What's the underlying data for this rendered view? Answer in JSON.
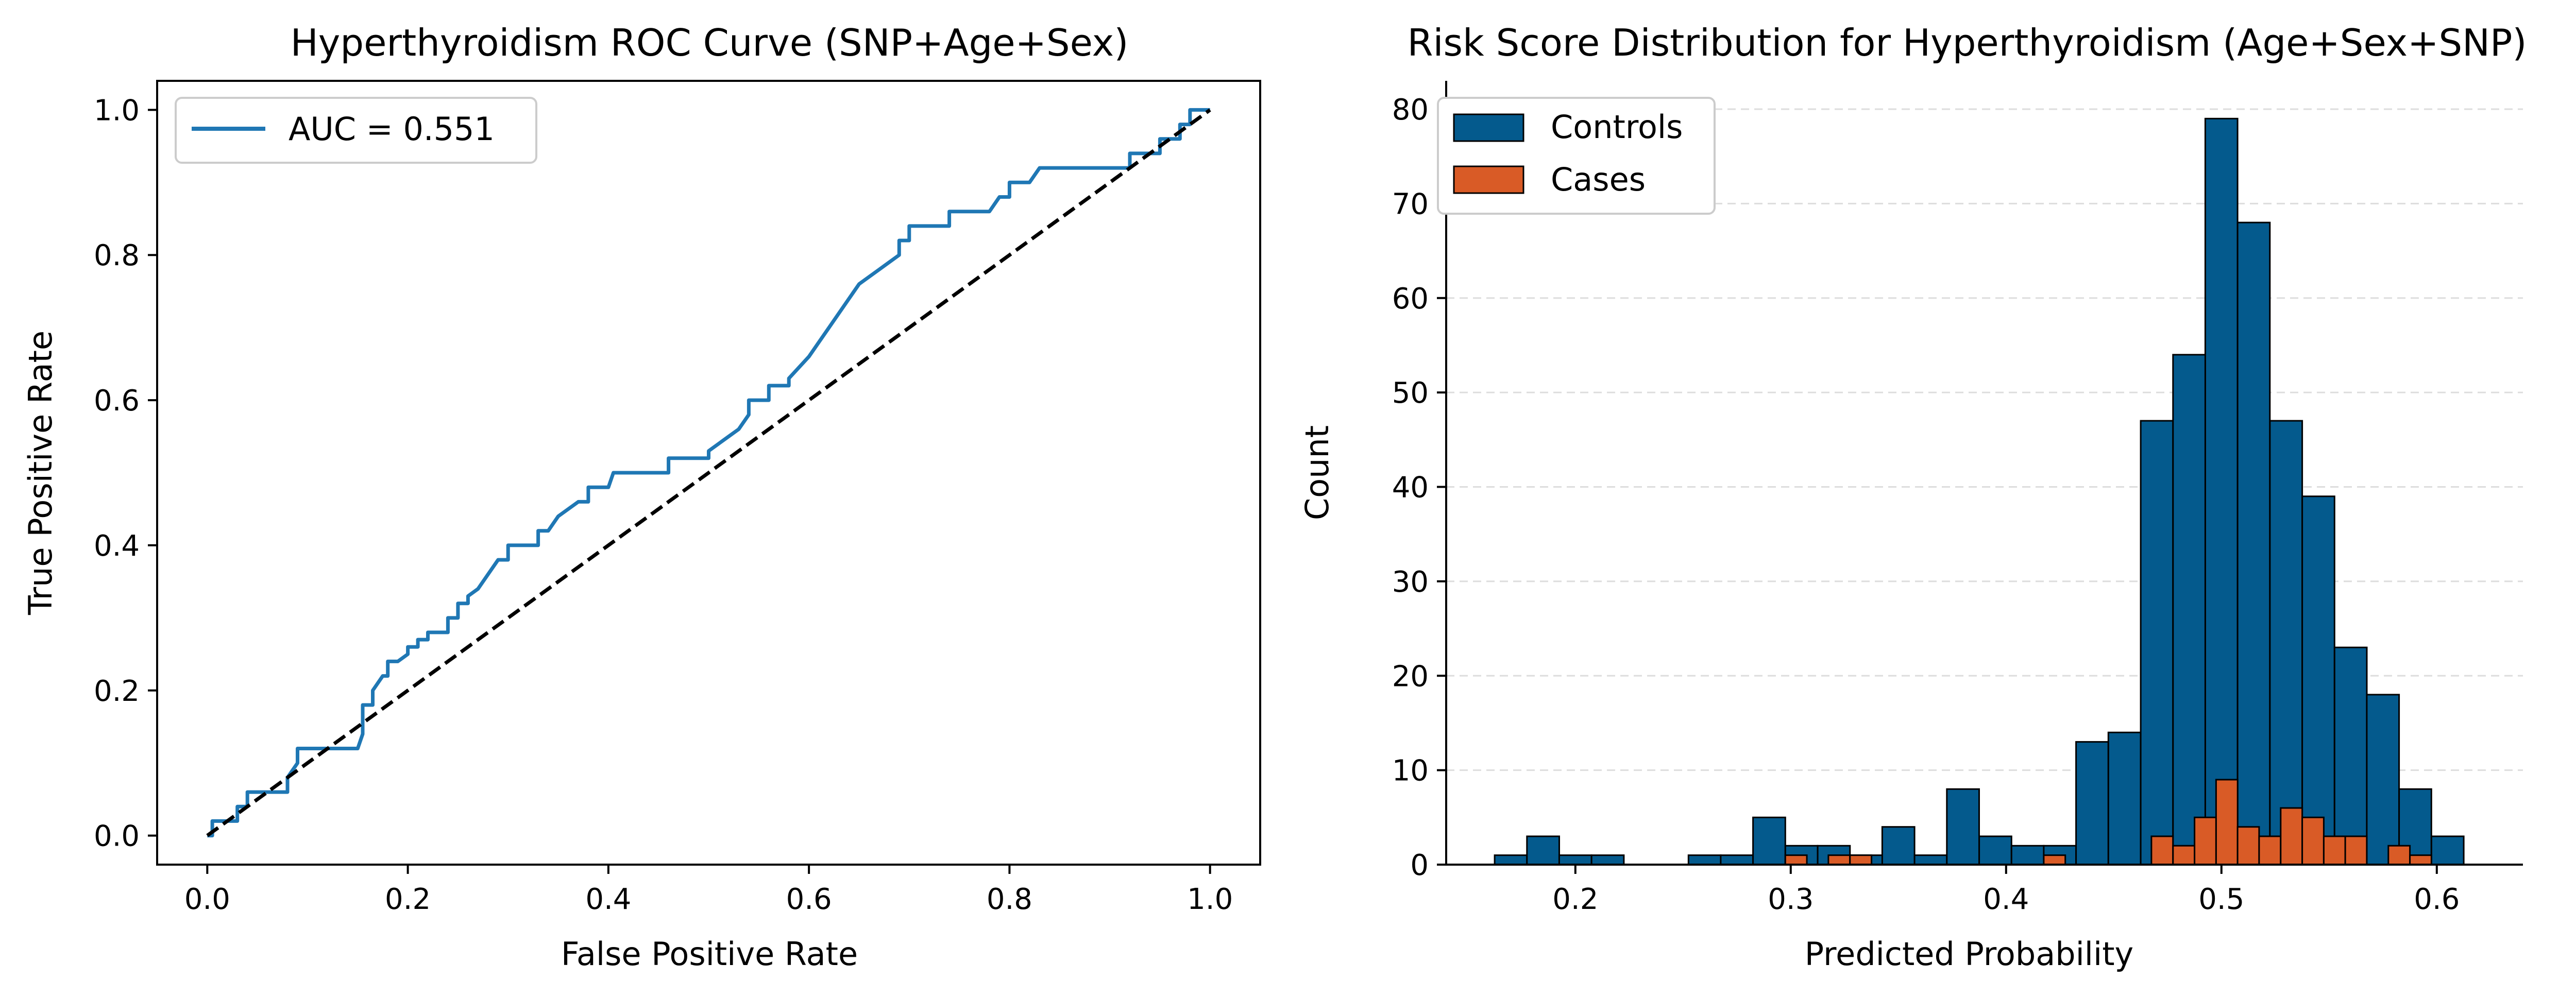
{
  "chart_data": [
    {
      "type": "line",
      "title": "Hyperthyroidism ROC Curve (SNP+Age+Sex)",
      "xlabel": "False Positive Rate",
      "ylabel": "True Positive Rate",
      "xlim": [
        -0.05,
        1.05
      ],
      "ylim": [
        -0.04,
        1.04
      ],
      "xticks": [
        "0.0",
        "0.2",
        "0.4",
        "0.6",
        "0.8",
        "1.0"
      ],
      "yticks": [
        "0.0",
        "0.2",
        "0.4",
        "0.6",
        "0.8",
        "1.0"
      ],
      "grid": false,
      "legend_position": "top-left",
      "series": [
        {
          "name": "AUC = 0.551",
          "color": "#1f77b4",
          "style": "solid",
          "x": [
            0.0,
            0.005,
            0.005,
            0.03,
            0.03,
            0.04,
            0.04,
            0.08,
            0.08,
            0.09,
            0.09,
            0.13,
            0.13,
            0.15,
            0.155,
            0.155,
            0.165,
            0.165,
            0.175,
            0.18,
            0.18,
            0.19,
            0.2,
            0.2,
            0.21,
            0.21,
            0.22,
            0.22,
            0.24,
            0.24,
            0.25,
            0.25,
            0.26,
            0.26,
            0.27,
            0.28,
            0.29,
            0.3,
            0.3,
            0.33,
            0.33,
            0.34,
            0.35,
            0.35,
            0.37,
            0.38,
            0.38,
            0.4,
            0.405,
            0.405,
            0.46,
            0.46,
            0.5,
            0.5,
            0.52,
            0.53,
            0.54,
            0.54,
            0.56,
            0.56,
            0.58,
            0.58,
            0.6,
            0.61,
            0.62,
            0.62,
            0.63,
            0.63,
            0.65,
            0.65,
            0.67,
            0.67,
            0.69,
            0.69,
            0.7,
            0.7,
            0.74,
            0.74,
            0.78,
            0.79,
            0.8,
            0.8,
            0.82,
            0.82,
            0.83,
            0.83,
            0.92,
            0.92,
            0.93,
            0.93,
            0.95,
            0.95,
            0.97,
            0.97,
            0.98,
            0.98,
            1.0
          ],
          "y": [
            0.0,
            0.0,
            0.02,
            0.02,
            0.04,
            0.04,
            0.06,
            0.06,
            0.08,
            0.1,
            0.12,
            0.12,
            0.12,
            0.12,
            0.14,
            0.18,
            0.18,
            0.2,
            0.22,
            0.22,
            0.24,
            0.24,
            0.25,
            0.26,
            0.26,
            0.27,
            0.27,
            0.28,
            0.28,
            0.3,
            0.3,
            0.32,
            0.32,
            0.33,
            0.34,
            0.36,
            0.38,
            0.38,
            0.4,
            0.4,
            0.42,
            0.42,
            0.44,
            0.44,
            0.46,
            0.46,
            0.48,
            0.48,
            0.5,
            0.5,
            0.5,
            0.52,
            0.52,
            0.53,
            0.55,
            0.56,
            0.58,
            0.6,
            0.6,
            0.62,
            0.62,
            0.63,
            0.66,
            0.68,
            0.7,
            0.7,
            0.72,
            0.72,
            0.76,
            0.76,
            0.78,
            0.78,
            0.8,
            0.82,
            0.82,
            0.84,
            0.84,
            0.86,
            0.86,
            0.88,
            0.88,
            0.9,
            0.9,
            0.9,
            0.92,
            0.92,
            0.92,
            0.94,
            0.94,
            0.94,
            0.94,
            0.96,
            0.96,
            0.98,
            0.98,
            1.0,
            1.0
          ]
        },
        {
          "name": "",
          "color": "#000000",
          "style": "dashed",
          "x": [
            0.0,
            1.0
          ],
          "y": [
            0.0,
            1.0
          ]
        }
      ]
    },
    {
      "type": "bar",
      "title": "Risk Score Distribution for Hyperthyroidism (Age+Sex+SNP)",
      "xlabel": "Predicted Probability",
      "ylabel": "Count",
      "xlim": [
        0.14,
        0.64
      ],
      "ylim": [
        0,
        83
      ],
      "xticks": [
        "0.2",
        "0.3",
        "0.4",
        "0.5",
        "0.6"
      ],
      "yticks": [
        "0",
        "10",
        "20",
        "30",
        "40",
        "50",
        "60",
        "70",
        "80"
      ],
      "grid": "y-dashed",
      "legend_position": "top-left",
      "bin_width": 0.015,
      "series": [
        {
          "name": "Controls",
          "color": "#045a8d",
          "bin_starts": [
            0.1625,
            0.1775,
            0.1925,
            0.2075,
            0.2225,
            0.2375,
            0.2525,
            0.2675,
            0.2825,
            0.2975,
            0.3125,
            0.3275,
            0.3425,
            0.3575,
            0.3725,
            0.3875,
            0.4025,
            0.4175,
            0.4325,
            0.4475,
            0.4625,
            0.4775,
            0.4925,
            0.5075,
            0.5225,
            0.5375,
            0.5525,
            0.5675,
            0.5825,
            0.5975
          ],
          "values": [
            1,
            3,
            1,
            1,
            0,
            0,
            1,
            1,
            5,
            2,
            2,
            1,
            4,
            1,
            8,
            3,
            2,
            2,
            13,
            14,
            47,
            54,
            79,
            68,
            47,
            39,
            23,
            18,
            8,
            3
          ]
        },
        {
          "name": "Cases",
          "color": "#d95b26",
          "bin_starts": [
            0.2975,
            0.3175,
            0.3275,
            0.3475,
            0.4175,
            0.4675,
            0.4775,
            0.4875,
            0.4975,
            0.5075,
            0.5175,
            0.5275,
            0.5375,
            0.5475,
            0.5575,
            0.5775,
            0.5875
          ],
          "bin_width": 0.01,
          "values": [
            1,
            1,
            1,
            0,
            1,
            3,
            2,
            5,
            9,
            4,
            3,
            6,
            5,
            3,
            3,
            2,
            1
          ]
        }
      ]
    }
  ]
}
